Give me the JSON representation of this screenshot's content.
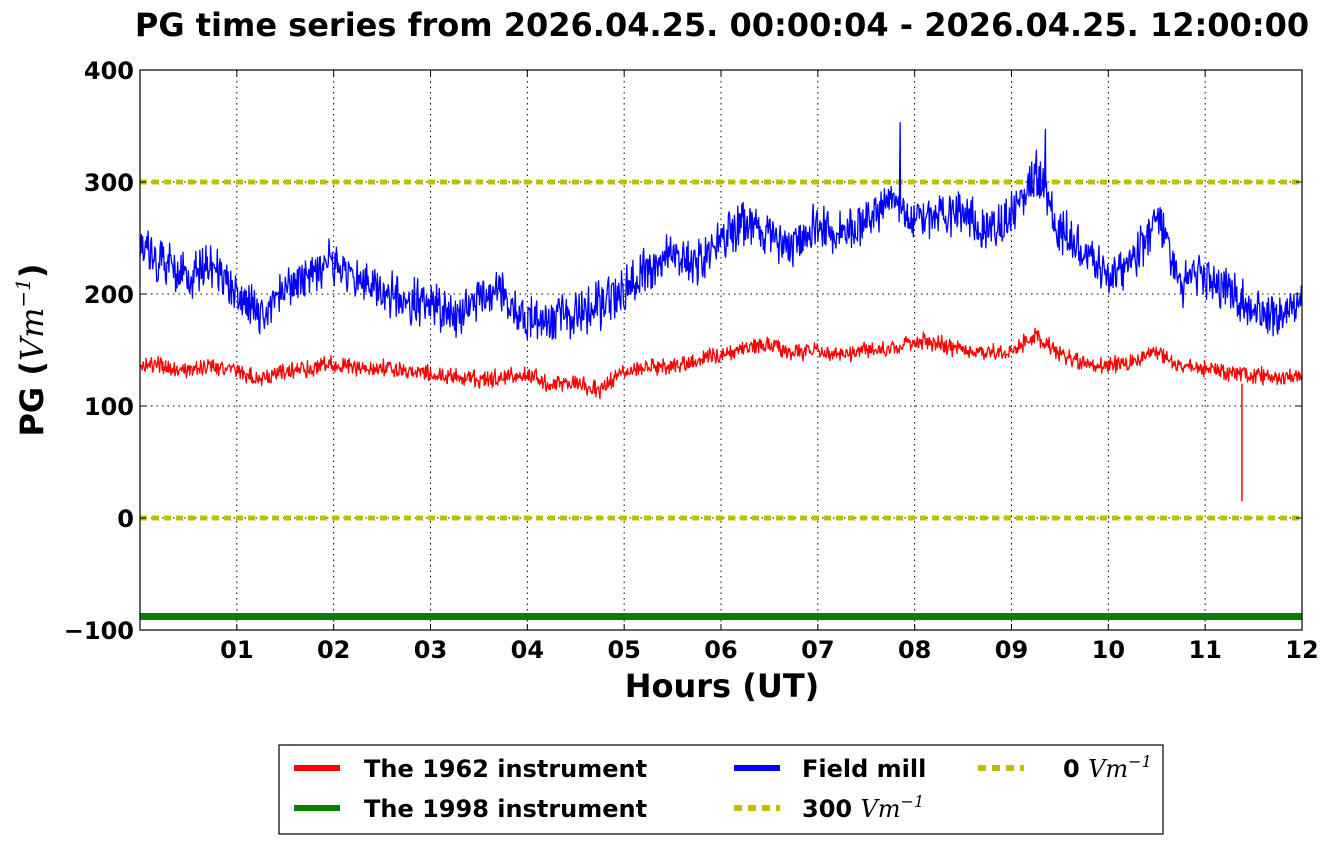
{
  "chart_data": {
    "type": "line",
    "title": "PG time series from 2026.04.25. 00:00:04 - 2026.04.25. 12:00:00",
    "xlabel": "Hours (UT)",
    "ylabel": {
      "prefix": "PG (",
      "unit_base": "Vm",
      "unit_exponent": "−1",
      "suffix": ")"
    },
    "xlim": [
      0,
      12
    ],
    "ylim": [
      -100,
      400
    ],
    "x_ticks": [
      1,
      2,
      3,
      4,
      5,
      6,
      7,
      8,
      9,
      10,
      11,
      12
    ],
    "x_tick_labels": [
      "01",
      "02",
      "03",
      "04",
      "05",
      "06",
      "07",
      "08",
      "09",
      "10",
      "11",
      "12"
    ],
    "y_ticks": [
      -100,
      0,
      100,
      200,
      300,
      400
    ],
    "y_tick_labels": [
      "−100",
      "0",
      "100",
      "200",
      "300",
      "400"
    ],
    "grid": true,
    "legend_position": "below-center",
    "x": [
      0,
      0.25,
      0.5,
      0.75,
      1,
      1.25,
      1.5,
      1.75,
      2,
      2.25,
      2.5,
      2.75,
      3,
      3.25,
      3.5,
      3.75,
      4,
      4.25,
      4.5,
      4.75,
      5,
      5.25,
      5.5,
      5.75,
      6,
      6.25,
      6.5,
      6.75,
      7,
      7.25,
      7.5,
      7.75,
      8,
      8.25,
      8.5,
      8.75,
      9,
      9.25,
      9.5,
      9.75,
      10,
      10.25,
      10.5,
      10.75,
      11,
      11.25,
      11.5,
      11.75,
      12
    ],
    "series": [
      {
        "name": "The 1962 instrument",
        "color": "#ff0000",
        "values": [
          138,
          135,
          132,
          136,
          131,
          124,
          130,
          134,
          138,
          133,
          134,
          131,
          128,
          127,
          124,
          126,
          128,
          118,
          121,
          114,
          130,
          135,
          136,
          140,
          146,
          152,
          155,
          148,
          150,
          146,
          150,
          152,
          158,
          156,
          150,
          148,
          150,
          162,
          146,
          138,
          135,
          140,
          148,
          135,
          132,
          130,
          128,
          125,
          128
        ],
        "spikes": [
          {
            "x": 11.38,
            "value": 15
          }
        ]
      },
      {
        "name": "The 1998 instrument",
        "color": "#008000",
        "values": [
          -88,
          -88,
          -88,
          -88,
          -88,
          -88,
          -88,
          -88,
          -88,
          -88,
          -88,
          -88,
          -88,
          -88,
          -88,
          -88,
          -88,
          -88,
          -88,
          -88,
          -88,
          -88,
          -88,
          -88,
          -88,
          -88,
          -88,
          -88,
          -88,
          -88,
          -88,
          -88,
          -88,
          -88,
          -88,
          -88,
          -88,
          -88,
          -88,
          -88,
          -88,
          -88,
          -88,
          -88,
          -88,
          -88,
          -88,
          -88,
          -88
        ]
      },
      {
        "name": "Field mill",
        "color": "#0000ff",
        "values": [
          235,
          230,
          215,
          225,
          200,
          180,
          205,
          220,
          228,
          210,
          205,
          195,
          188,
          182,
          195,
          200,
          175,
          178,
          182,
          190,
          205,
          222,
          235,
          225,
          250,
          265,
          255,
          240,
          262,
          250,
          265,
          285,
          265,
          272,
          275,
          255,
          272,
          310,
          258,
          235,
          215,
          230,
          270,
          210,
          215,
          205,
          185,
          180,
          200
        ],
        "peaks": [
          {
            "x": 7.85,
            "value": 353
          },
          {
            "x": 9.35,
            "value": 347
          }
        ]
      },
      {
        "name": "300",
        "color": "#bfbf00",
        "values": [
          300,
          300,
          300,
          300,
          300,
          300,
          300,
          300,
          300,
          300,
          300,
          300,
          300,
          300,
          300,
          300,
          300,
          300,
          300,
          300,
          300,
          300,
          300,
          300,
          300,
          300,
          300,
          300,
          300,
          300,
          300,
          300,
          300,
          300,
          300,
          300,
          300,
          300,
          300,
          300,
          300,
          300,
          300,
          300,
          300,
          300,
          300,
          300,
          300
        ]
      },
      {
        "name": "0",
        "color": "#bfbf00",
        "values": [
          0,
          0,
          0,
          0,
          0,
          0,
          0,
          0,
          0,
          0,
          0,
          0,
          0,
          0,
          0,
          0,
          0,
          0,
          0,
          0,
          0,
          0,
          0,
          0,
          0,
          0,
          0,
          0,
          0,
          0,
          0,
          0,
          0,
          0,
          0,
          0,
          0,
          0,
          0,
          0,
          0,
          0,
          0,
          0,
          0,
          0,
          0,
          0,
          0
        ]
      }
    ],
    "legend": [
      {
        "label": "The 1962 instrument",
        "color": "#ff0000",
        "style": "solid"
      },
      {
        "label": "The 1998 instrument",
        "color": "#008000",
        "style": "solid"
      },
      {
        "label": "Field mill",
        "color": "#0000ff",
        "style": "solid"
      },
      {
        "label": "300",
        "unit_base": "Vm",
        "unit_exponent": "−1",
        "color": "#bfbf00",
        "style": "dotted"
      },
      {
        "label": "0",
        "unit_base": "Vm",
        "unit_exponent": "−1",
        "color": "#bfbf00",
        "style": "dotted"
      }
    ]
  }
}
